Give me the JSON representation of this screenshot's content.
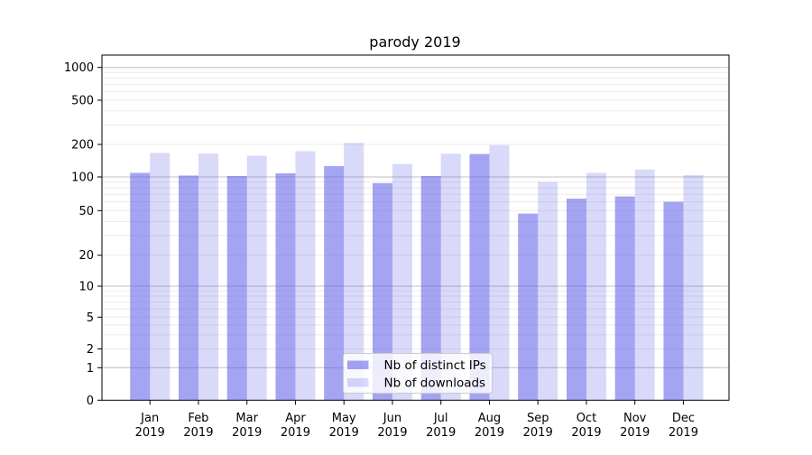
{
  "chart_data": {
    "type": "bar",
    "title": "parody 2019",
    "categories": [
      "Jan",
      "Feb",
      "Mar",
      "Apr",
      "May",
      "Jun",
      "Jul",
      "Aug",
      "Sep",
      "Oct",
      "Nov",
      "Dec"
    ],
    "category_year": "2019",
    "series": [
      {
        "name": "Nb of distinct IPs",
        "color": "rgba(90,90,232,0.55)",
        "values": [
          109,
          103,
          102,
          108,
          126,
          88,
          102,
          163,
          47,
          64,
          67,
          60
        ]
      },
      {
        "name": "Nb of downloads",
        "color": "rgba(90,90,232,0.23)",
        "values": [
          167,
          165,
          157,
          173,
          207,
          132,
          164,
          197,
          90,
          109,
          117,
          104
        ]
      }
    ],
    "yscale": "log-with-zero",
    "yticks": [
      0,
      1,
      2,
      5,
      10,
      20,
      50,
      100,
      200,
      500,
      1000
    ],
    "ylim": [
      0,
      1300
    ],
    "xlabel": "",
    "ylabel": "",
    "grid": {
      "major_ticks": [
        1,
        10,
        100,
        1000
      ],
      "minor_on": true
    },
    "legend_position": "lower center",
    "colors": {
      "major_grid": "#c0c0c0",
      "minor_grid": "#ebebeb",
      "spine": "#000000",
      "legend_bg": "rgba(255,255,255,0.8)",
      "legend_border": "#cccccc"
    }
  }
}
